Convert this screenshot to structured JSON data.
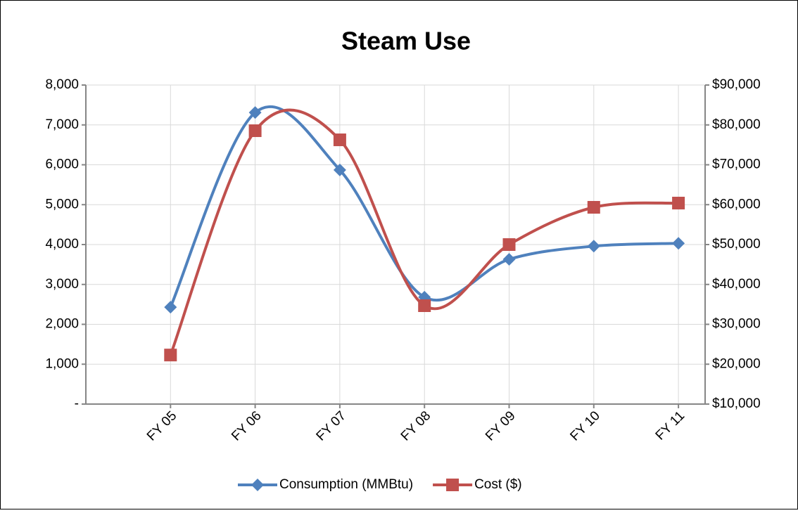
{
  "chart_data": {
    "type": "line",
    "title": "Steam Use",
    "categories": [
      "FY 05",
      "FY 06",
      "FY 07",
      "FY 08",
      "FY 09",
      "FY 10",
      "FY 11"
    ],
    "series": [
      {
        "name": "Consumption (MMBtu)",
        "color": "#4f81bd",
        "marker": "diamond",
        "values": [
          2430,
          7310,
          5870,
          2680,
          3630,
          3960,
          4030
        ]
      },
      {
        "name": "Cost ($)",
        "color": "#c0504d",
        "marker": "square",
        "axis": "y2",
        "values": [
          22300,
          78550,
          76260,
          34670,
          50000,
          59340,
          60400
        ]
      }
    ],
    "ylim": [
      0,
      8000
    ],
    "yticks": [
      {
        "value": 0,
        "label": "-"
      },
      {
        "value": 1000,
        "label": "1,000"
      },
      {
        "value": 2000,
        "label": "2,000"
      },
      {
        "value": 3000,
        "label": "3,000"
      },
      {
        "value": 4000,
        "label": "4,000"
      },
      {
        "value": 5000,
        "label": "5,000"
      },
      {
        "value": 6000,
        "label": "6,000"
      },
      {
        "value": 7000,
        "label": "7,000"
      },
      {
        "value": 8000,
        "label": "8,000"
      }
    ],
    "y2lim": [
      10000,
      90000
    ],
    "y2ticks": [
      {
        "value": 10000,
        "label": "$10,000"
      },
      {
        "value": 20000,
        "label": "$20,000"
      },
      {
        "value": 30000,
        "label": "$30,000"
      },
      {
        "value": 40000,
        "label": "$40,000"
      },
      {
        "value": 50000,
        "label": "$50,000"
      },
      {
        "value": 60000,
        "label": "$60,000"
      },
      {
        "value": 70000,
        "label": "$70,000"
      },
      {
        "value": 80000,
        "label": "$80,000"
      },
      {
        "value": 90000,
        "label": "$90,000"
      }
    ],
    "grid": true,
    "smooth": true,
    "legend": "bottom"
  }
}
